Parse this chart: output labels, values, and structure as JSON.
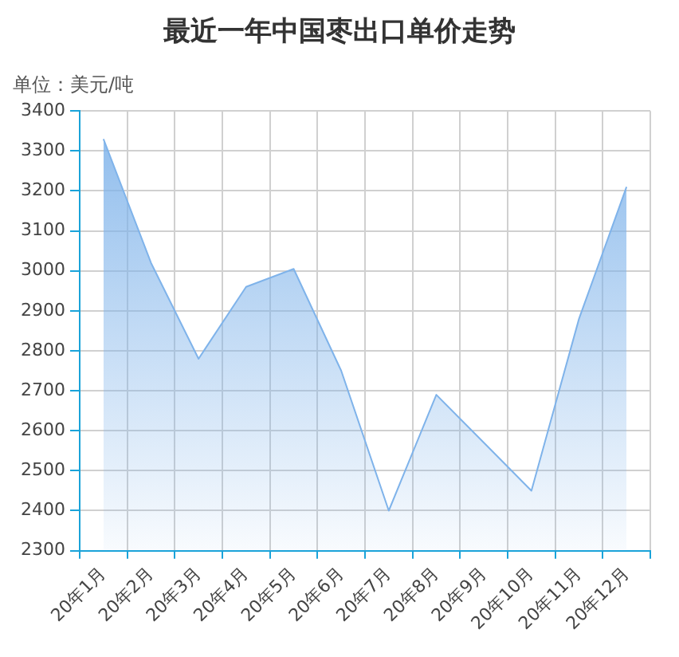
{
  "chart_data": {
    "type": "area",
    "title": "最近一年中国枣出口单价走势",
    "ylabel": "单位：美元/吨",
    "categories": [
      "20年1月",
      "20年2月",
      "20年3月",
      "20年4月",
      "20年5月",
      "20年6月",
      "20年7月",
      "20年8月",
      "20年9月",
      "20年10月",
      "20年11月",
      "20年12月"
    ],
    "series": [
      {
        "color": "#7fb3ea",
        "values": [
          3330,
          3020,
          2780,
          2960,
          3005,
          2750,
          2400,
          2690,
          2570,
          2450,
          2880,
          3210
        ]
      }
    ],
    "ylim": [
      2300,
      3400
    ],
    "yticks": [
      2300,
      2400,
      2500,
      2600,
      2700,
      2800,
      2900,
      3000,
      3100,
      3200,
      3300,
      3400
    ],
    "grid": true,
    "legend": false,
    "marker": "none"
  }
}
